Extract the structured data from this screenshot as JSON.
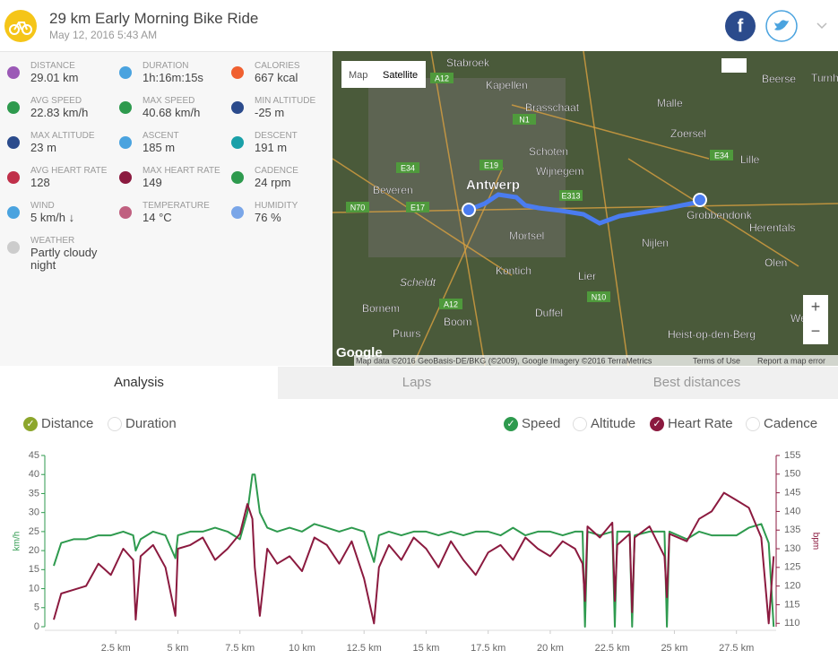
{
  "header": {
    "title": "29 km Early Morning Bike Ride",
    "date": "May 12, 2016 5:43 AM"
  },
  "stats": [
    {
      "label": "DISTANCE",
      "value": "29.01 km"
    },
    {
      "label": "DURATION",
      "value": "1h:16m:15s"
    },
    {
      "label": "CALORIES",
      "value": "667 kcal"
    },
    {
      "label": "AVG SPEED",
      "value": "22.83 km/h"
    },
    {
      "label": "MAX SPEED",
      "value": "40.68 km/h"
    },
    {
      "label": "MIN ALTITUDE",
      "value": "-25 m"
    },
    {
      "label": "MAX ALTITUDE",
      "value": "23 m"
    },
    {
      "label": "ASCENT",
      "value": "185 m"
    },
    {
      "label": "DESCENT",
      "value": "191 m"
    },
    {
      "label": "AVG HEART RATE",
      "value": "128"
    },
    {
      "label": "MAX HEART RATE",
      "value": "149"
    },
    {
      "label": "CADENCE",
      "value": "24 rpm"
    },
    {
      "label": "WIND",
      "value": "5 km/h ↓"
    },
    {
      "label": "TEMPERATURE",
      "value": "14 °C"
    },
    {
      "label": "HUMIDITY",
      "value": "76 %"
    },
    {
      "label": "WEATHER",
      "value": "Partly cloudy night"
    }
  ],
  "map": {
    "buttons": [
      "Map",
      "Satellite"
    ],
    "zoom": [
      "+",
      "−"
    ],
    "places": [
      "Stabroek",
      "Kapellen",
      "Beerse",
      "Turnhout",
      "Brasschaat",
      "Malle",
      "Zoersel",
      "Schoten",
      "Wijnegem",
      "Lille",
      "Beveren",
      "Antwerp",
      "Grobbendonk",
      "Mortsel",
      "Nijlen",
      "Herentals",
      "Kontich",
      "Lier",
      "Olen",
      "Bornem",
      "Boom",
      "Duffel",
      "Puurs",
      "Heist-op-den-Berg",
      "West",
      "Scheldt"
    ],
    "roads": [
      "A12",
      "N1",
      "E19",
      "E34",
      "E34",
      "E313",
      "N70",
      "E17",
      "N10",
      "A12"
    ],
    "attribution": "Map data ©2016 GeoBasis-DE/BKG (©2009), Google Imagery ©2016 TerraMetrics",
    "terms": "Terms of Use",
    "report": "Report a map error",
    "logo": "Google"
  },
  "tabs": [
    "Analysis",
    "Laps",
    "Best distances"
  ],
  "toggles": [
    {
      "label": "Distance",
      "checked": true,
      "color": "#8ca62c"
    },
    {
      "label": "Duration",
      "checked": false
    },
    {
      "label": "Speed",
      "checked": true,
      "color": "#2e9a4e"
    },
    {
      "label": "Altitude",
      "checked": false
    },
    {
      "label": "Heart Rate",
      "checked": true,
      "color": "#8b1a3f"
    },
    {
      "label": "Cadence",
      "checked": false
    }
  ],
  "chart_data": {
    "type": "line",
    "ylabel": "km/h",
    "y2label": "bpm",
    "x": [
      0,
      0.3,
      0.8,
      1.3,
      1.8,
      2.3,
      2.8,
      3.2,
      3.3,
      3.5,
      4.0,
      4.5,
      4.9,
      5.0,
      5.5,
      6.0,
      6.5,
      7.0,
      7.5,
      7.8,
      8.0,
      8.1,
      8.3,
      8.6,
      9,
      9.5,
      10,
      10.5,
      11,
      11.5,
      12,
      12.5,
      12.9,
      13.1,
      13.5,
      14,
      14.5,
      15,
      15.5,
      16,
      16.5,
      17,
      17.5,
      18,
      18.5,
      19,
      19.5,
      20,
      20.5,
      21,
      21.3,
      21.4,
      21.5,
      22,
      22.5,
      22.6,
      22.7,
      23.2,
      23.3,
      23.4,
      24,
      24.6,
      24.7,
      24.8,
      25.5,
      26,
      26.5,
      27,
      27.5,
      28,
      28.5,
      28.8,
      29
    ],
    "series": [
      {
        "name": "Speed",
        "color": "#2e9a4e",
        "values": [
          16,
          22,
          23,
          23,
          24,
          24,
          25,
          24,
          20,
          23,
          25,
          24,
          18,
          24,
          25,
          25,
          26,
          25,
          23,
          30,
          40,
          40,
          30,
          26,
          25,
          26,
          25,
          27,
          26,
          25,
          26,
          25,
          17,
          24,
          25,
          24,
          25,
          25,
          24,
          25,
          24,
          25,
          25,
          24,
          26,
          24,
          25,
          25,
          24,
          25,
          25,
          0,
          25,
          24,
          25,
          0,
          25,
          25,
          0,
          24,
          25,
          25,
          0,
          25,
          23,
          25,
          24,
          24,
          24,
          26,
          27,
          22,
          0
        ]
      },
      {
        "name": "Heart Rate",
        "color": "#8b1a3f",
        "axis": "y2",
        "values": [
          111,
          118,
          119,
          120,
          126,
          123,
          130,
          127,
          111,
          128,
          131,
          125,
          112,
          130,
          131,
          133,
          127,
          130,
          134,
          142,
          138,
          125,
          112,
          130,
          126,
          128,
          124,
          133,
          131,
          126,
          132,
          122,
          110,
          125,
          131,
          127,
          133,
          130,
          125,
          132,
          127,
          123,
          129,
          131,
          127,
          133,
          130,
          128,
          132,
          130,
          126,
          116,
          136,
          133,
          137,
          116,
          131,
          134,
          113,
          133,
          136,
          128,
          117,
          134,
          132,
          138,
          140,
          145,
          143,
          141,
          133,
          110,
          128
        ]
      }
    ],
    "xlim": [
      -0.36,
      29.1
    ],
    "xticks": [
      {
        "value": 2.5,
        "label": "2.5 km"
      },
      {
        "value": 5,
        "label": "5 km"
      },
      {
        "value": 7.5,
        "label": "7.5 km"
      },
      {
        "value": 10,
        "label": "10 km"
      },
      {
        "value": 12.5,
        "label": "12.5 km"
      },
      {
        "value": 15,
        "label": "15 km"
      },
      {
        "value": 17.5,
        "label": "17.5 km"
      },
      {
        "value": 20,
        "label": "20 km"
      },
      {
        "value": 22.5,
        "label": "22.5 km"
      },
      {
        "value": 25,
        "label": "25 km"
      },
      {
        "value": 27.5,
        "label": "27.5 km"
      }
    ],
    "ylim": [
      0,
      45
    ],
    "yticks": [
      0,
      5,
      10,
      15,
      20,
      25,
      30,
      35,
      40,
      45
    ],
    "y2lim": [
      109.1,
      155
    ],
    "y2ticks": [
      110,
      115,
      120,
      125,
      130,
      135,
      140,
      145,
      150,
      155
    ]
  }
}
